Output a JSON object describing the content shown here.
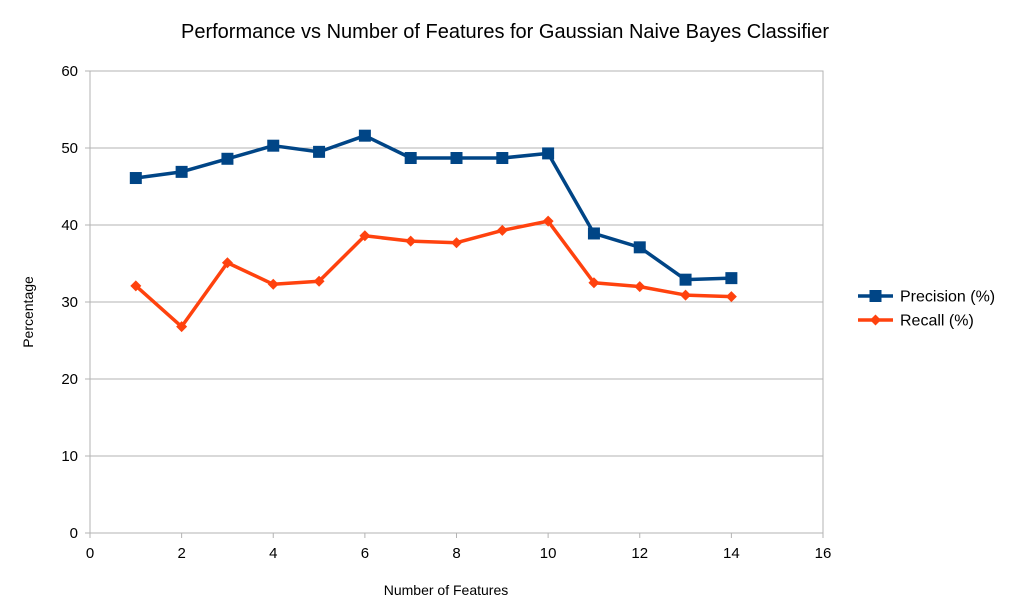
{
  "chart_data": {
    "type": "line",
    "title": "Performance vs Number of Features for Gaussian Naive Bayes Classifier",
    "xlabel": "Number of Features",
    "ylabel": "Percentage",
    "xlim": [
      0,
      16
    ],
    "ylim": [
      0,
      60
    ],
    "xticks": [
      0,
      2,
      4,
      6,
      8,
      10,
      12,
      14,
      16
    ],
    "yticks": [
      0,
      10,
      20,
      30,
      40,
      50,
      60
    ],
    "grid": "horizontal",
    "legend_position": "right",
    "x": [
      1,
      2,
      3,
      4,
      5,
      6,
      7,
      8,
      9,
      10,
      11,
      12,
      13,
      14
    ],
    "series": [
      {
        "name": "Precision (%)",
        "color": "#004586",
        "marker": "square",
        "values": [
          46.1,
          46.9,
          48.6,
          50.3,
          49.5,
          51.6,
          48.7,
          48.7,
          48.7,
          49.3,
          38.9,
          37.1,
          32.9,
          33.1
        ]
      },
      {
        "name": "Recall (%)",
        "color": "#ff420e",
        "marker": "diamond",
        "values": [
          32.1,
          26.8,
          35.1,
          32.3,
          32.7,
          38.6,
          37.9,
          37.7,
          39.3,
          40.5,
          32.5,
          32.0,
          30.9,
          30.7
        ]
      }
    ]
  }
}
